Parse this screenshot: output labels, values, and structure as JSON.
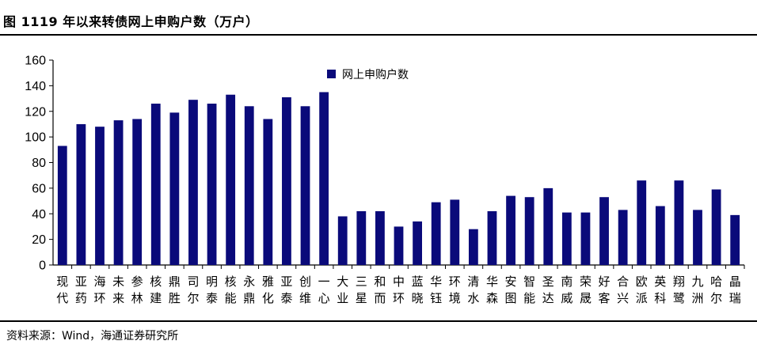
{
  "title": "图 1119 年以来转债网上申购户数（万户）",
  "source": "资料来源：Wind，海通证券研究所",
  "colors": {
    "bar": "#0a0a7a",
    "axis": "#000000"
  },
  "chart_data": {
    "type": "bar",
    "title": "",
    "xlabel": "",
    "ylabel": "",
    "ylim": [
      0,
      160
    ],
    "yticks": [
      0,
      20,
      40,
      60,
      80,
      100,
      120,
      140,
      160
    ],
    "grid": false,
    "legend": {
      "position": "top-center"
    },
    "categories": [
      "现代",
      "亚药",
      "海环",
      "未来",
      "参林",
      "核建",
      "鼎胜",
      "司尔",
      "明泰",
      "核能",
      "永鼎",
      "雅化",
      "亚泰",
      "创维",
      "一心",
      "大业",
      "三星",
      "和而",
      "中环",
      "蓝晓",
      "华钰",
      "环境",
      "清水",
      "华森",
      "安图",
      "智能",
      "圣达",
      "南威",
      "荣晟",
      "好客",
      "合兴",
      "欧派",
      "英科",
      "翔鹭",
      "九洲",
      "哈尔",
      "晶瑞"
    ],
    "series": [
      {
        "name": "网上申购户数",
        "values": [
          93,
          110,
          108,
          113,
          114,
          126,
          119,
          129,
          126,
          133,
          124,
          114,
          131,
          124,
          135,
          38,
          42,
          42,
          30,
          34,
          49,
          51,
          28,
          42,
          54,
          53,
          60,
          41,
          41,
          53,
          43,
          66,
          46,
          66,
          43,
          59,
          39
        ]
      }
    ]
  }
}
